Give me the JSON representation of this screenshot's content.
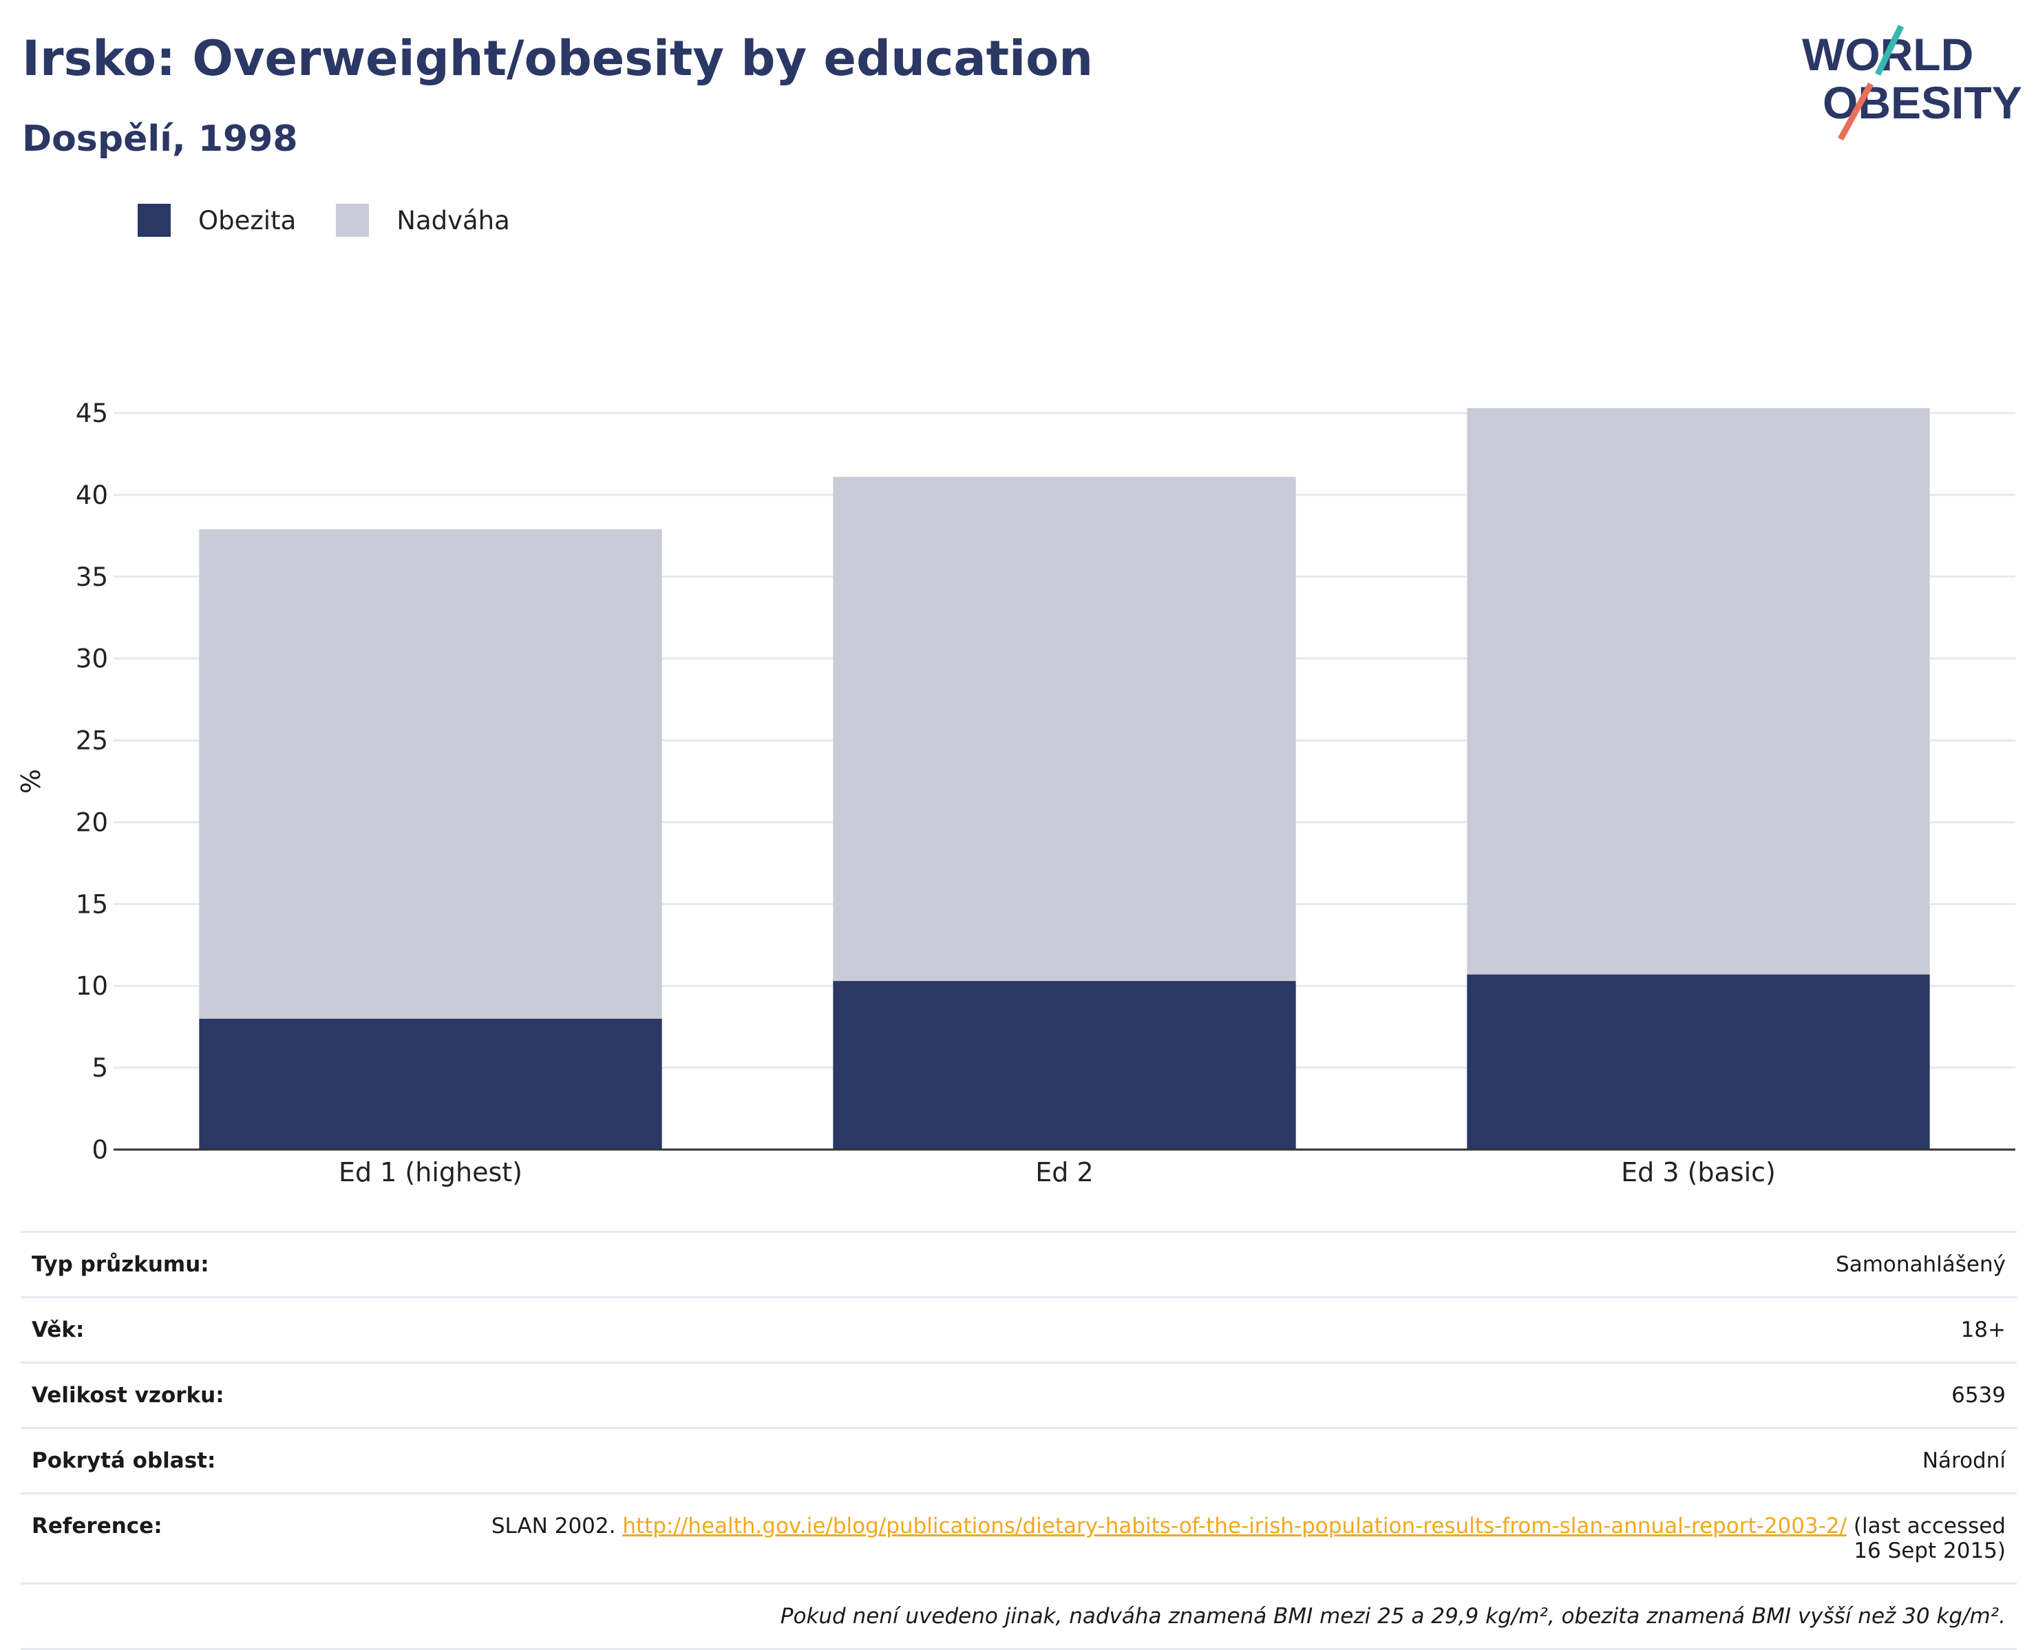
{
  "header": {
    "title": "Irsko: Overweight/obesity by education",
    "subtitle": "Dospělí, 1998"
  },
  "logo": {
    "line1": "WORLD",
    "line2": "OBESITY",
    "accent1": "#35b8b1",
    "accent2": "#e8705a"
  },
  "chart_data": {
    "type": "bar",
    "stacked": true,
    "categories": [
      "Ed 1 (highest)",
      "Ed 2",
      "Ed 3 (basic)"
    ],
    "series": [
      {
        "name": "Obezita",
        "color": "#2b3764",
        "values": [
          8.0,
          10.3,
          10.7
        ]
      },
      {
        "name": "Nadváha",
        "color": "#c9ccd7",
        "values": [
          29.9,
          30.8,
          34.6
        ]
      }
    ],
    "ylabel": "%",
    "ylim": [
      0,
      45
    ],
    "yticks": [
      0,
      5,
      10,
      15,
      20,
      25,
      30,
      35,
      40,
      45
    ],
    "grid": true,
    "legend": "top-left"
  },
  "info": {
    "survey_type_label": "Typ průzkumu:",
    "survey_type_value": "Samonahlášený",
    "age_label": "Věk:",
    "age_value": "18+",
    "sample_label": "Velikost vzorku:",
    "sample_value": "6539",
    "area_label": "Pokrytá oblast:",
    "area_value": "Národní",
    "reference_label": "Reference:",
    "reference_prefix": "SLAN 2002. ",
    "reference_link": "http://health.gov.ie/blog/publications/dietary-habits-of-the-irish-population-results-from-slan-annual-report-2003-2/",
    "reference_suffix": " (last accessed 16 Sept 2015)",
    "note": "Pokud není uvedeno jinak, nadváha znamená BMI mezi 25 a 29,9 kg/m², obezita znamená BMI vyšší než 30 kg/m²."
  }
}
